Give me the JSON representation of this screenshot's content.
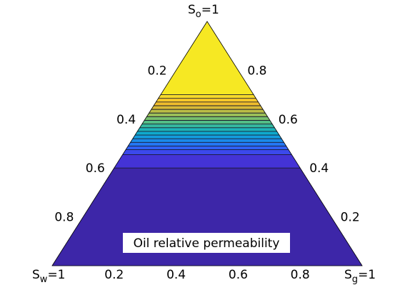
{
  "chart_data": {
    "type": "ternary-contour",
    "title": "Oil relative permeability",
    "corners": {
      "top": {
        "base": "S",
        "sub": "o",
        "suffix": "=1"
      },
      "left": {
        "base": "S",
        "sub": "w",
        "suffix": "=1"
      },
      "right": {
        "base": "S",
        "sub": "g",
        "suffix": "=1"
      }
    },
    "left_edge_ticks": [
      "0.2",
      "0.4",
      "0.6",
      "0.8"
    ],
    "right_edge_ticks": [
      "0.8",
      "0.6",
      "0.4",
      "0.2"
    ],
    "bottom_edge_ticks": [
      "0.2",
      "0.4",
      "0.6",
      "0.8"
    ],
    "bands": [
      {
        "so_min": 0.0,
        "so_max": 0.4,
        "color": "#3d26a8"
      },
      {
        "so_min": 0.4,
        "so_max": 0.455,
        "color": "#4433d6"
      },
      {
        "so_min": 0.455,
        "so_max": 0.475,
        "color": "#3b49ec"
      },
      {
        "so_min": 0.475,
        "so_max": 0.49,
        "color": "#2f61f4"
      },
      {
        "so_min": 0.49,
        "so_max": 0.505,
        "color": "#2477f4"
      },
      {
        "so_min": 0.505,
        "so_max": 0.52,
        "color": "#1a8ae9"
      },
      {
        "so_min": 0.52,
        "so_max": 0.535,
        "color": "#139cdd"
      },
      {
        "so_min": 0.535,
        "so_max": 0.55,
        "color": "#0fa9cd"
      },
      {
        "so_min": 0.55,
        "so_max": 0.565,
        "color": "#1eb3b9"
      },
      {
        "so_min": 0.565,
        "so_max": 0.58,
        "color": "#35b9a0"
      },
      {
        "so_min": 0.58,
        "so_max": 0.595,
        "color": "#53bd86"
      },
      {
        "so_min": 0.595,
        "so_max": 0.61,
        "color": "#78bf6d"
      },
      {
        "so_min": 0.61,
        "so_max": 0.625,
        "color": "#9bbf58"
      },
      {
        "so_min": 0.625,
        "so_max": 0.64,
        "color": "#bbbd45"
      },
      {
        "so_min": 0.64,
        "so_max": 0.655,
        "color": "#d8ba37"
      },
      {
        "so_min": 0.655,
        "so_max": 0.67,
        "color": "#efbc2c"
      },
      {
        "so_min": 0.67,
        "so_max": 0.685,
        "color": "#fbc92a"
      },
      {
        "so_min": 0.685,
        "so_max": 0.7,
        "color": "#f6d92a"
      },
      {
        "so_min": 0.7,
        "so_max": 1.0,
        "color": "#f6e823"
      }
    ],
    "grid": false,
    "legend": "none"
  }
}
